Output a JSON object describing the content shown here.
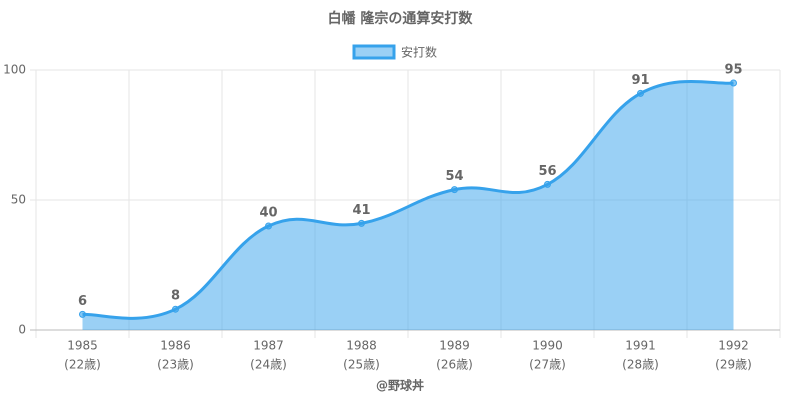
{
  "chart_data": {
    "type": "area",
    "title": "白幡 隆宗の通算安打数",
    "categories": [
      [
        "1985",
        "(22歳)"
      ],
      [
        "1986",
        "(23歳)"
      ],
      [
        "1987",
        "(24歳)"
      ],
      [
        "1988",
        "(25歳)"
      ],
      [
        "1989",
        "(26歳)"
      ],
      [
        "1990",
        "(27歳)"
      ],
      [
        "1991",
        "(28歳)"
      ],
      [
        "1992",
        "(29歳)"
      ]
    ],
    "series": [
      {
        "name": "安打数",
        "color": "#36a2eb",
        "values": [
          6,
          8,
          40,
          41,
          54,
          56,
          91,
          95
        ]
      }
    ],
    "ylim": [
      0,
      100
    ],
    "yticks": [
      0,
      50,
      100
    ],
    "grid": true,
    "legend": "top",
    "xlabel": "@野球丼"
  }
}
